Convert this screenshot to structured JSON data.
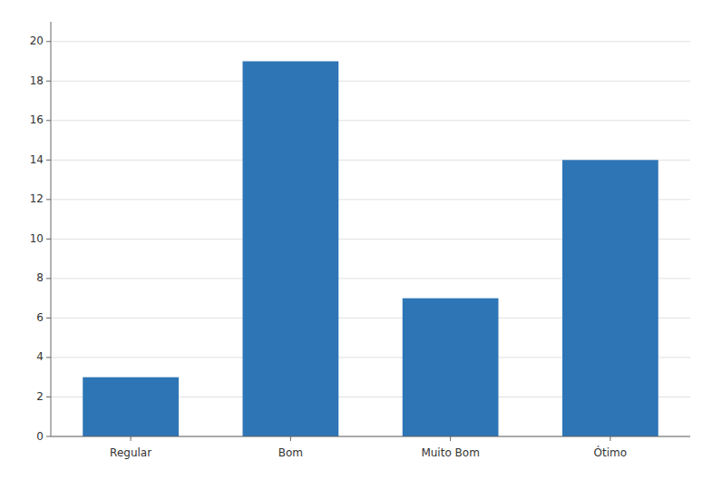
{
  "chart_data": {
    "type": "bar",
    "categories": [
      "Regular",
      "Bom",
      "Muito Bom",
      "Ótimo"
    ],
    "values": [
      3,
      19,
      7,
      14
    ],
    "color": "#2E75B6",
    "ylim": [
      0,
      21
    ],
    "yticks": [
      0,
      2,
      4,
      6,
      8,
      10,
      12,
      14,
      16,
      18,
      20
    ],
    "grid": true
  }
}
